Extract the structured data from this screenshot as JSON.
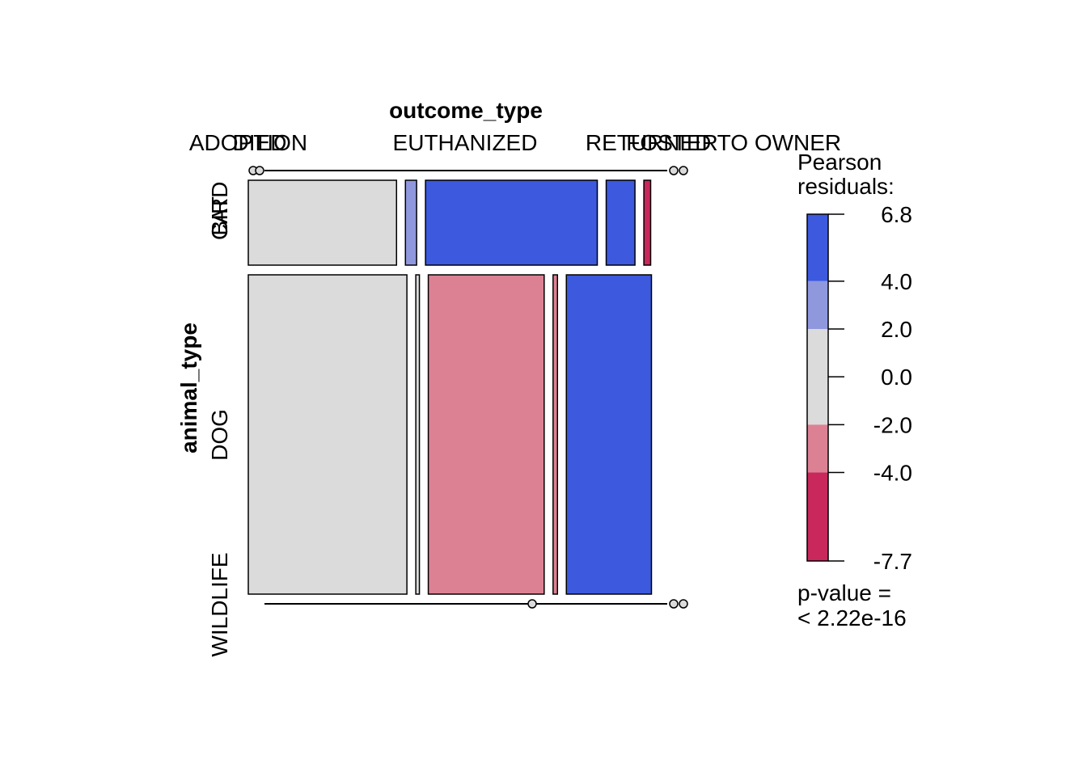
{
  "chart_data": {
    "type": "mosaic",
    "title": "",
    "column_variable": "outcome_type",
    "row_variable": "animal_type",
    "column_levels": [
      "ADOPTION",
      "DIED",
      "EUTHANIZED",
      "FOSTER",
      "RETURNED TO OWNER"
    ],
    "row_levels": [
      "BIRD",
      "CAT",
      "DOG",
      "WILDLIFE"
    ],
    "cells": [
      {
        "row": "BIRD",
        "col": "ADOPTION",
        "share": 0.0,
        "residual": 0.0
      },
      {
        "row": "BIRD",
        "col": "DIED",
        "share": 0.0,
        "residual": 0.0
      },
      {
        "row": "BIRD",
        "col": "EUTHANIZED",
        "share": 0.0,
        "residual": 0.0
      },
      {
        "row": "BIRD",
        "col": "FOSTER",
        "share": 0.0,
        "residual": 0.0
      },
      {
        "row": "BIRD",
        "col": "RETURNED TO OWNER",
        "share": 0.0,
        "residual": 0.0
      },
      {
        "row": "CAT",
        "col": "ADOPTION",
        "share": 0.371,
        "residual": 1.0
      },
      {
        "row": "CAT",
        "col": "DIED",
        "share": 0.028,
        "residual": 3.0
      },
      {
        "row": "CAT",
        "col": "EUTHANIZED",
        "share": 0.43,
        "residual": 5.5
      },
      {
        "row": "CAT",
        "col": "FOSTER",
        "share": 0.072,
        "residual": 5.0
      },
      {
        "row": "CAT",
        "col": "RETURNED TO OWNER",
        "share": 0.017,
        "residual": -6.0
      },
      {
        "row": "DOG",
        "col": "ADOPTION",
        "share": 0.397,
        "residual": -1.0
      },
      {
        "row": "DOG",
        "col": "DIED",
        "share": 0.009,
        "residual": -1.0
      },
      {
        "row": "DOG",
        "col": "EUTHANIZED",
        "share": 0.29,
        "residual": -3.0
      },
      {
        "row": "DOG",
        "col": "FOSTER",
        "share": 0.011,
        "residual": -3.0
      },
      {
        "row": "DOG",
        "col": "RETURNED TO OWNER",
        "share": 0.213,
        "residual": 5.0
      },
      {
        "row": "WILDLIFE",
        "col": "ADOPTION",
        "share": 0.0,
        "residual": 0.0
      },
      {
        "row": "WILDLIFE",
        "col": "DIED",
        "share": 0.0,
        "residual": 0.0
      },
      {
        "row": "WILDLIFE",
        "col": "EUTHANIZED",
        "share": 0.0,
        "residual": 0.0
      },
      {
        "row": "WILDLIFE",
        "col": "FOSTER",
        "share": 0.0,
        "residual": 0.0
      },
      {
        "row": "WILDLIFE",
        "col": "RETURNED TO OWNER",
        "share": 0.0,
        "residual": 0.0
      }
    ],
    "row_shares": {
      "BIRD": 0.0,
      "CAT": 0.21,
      "DOG": 0.79,
      "WILDLIFE": 0.0
    },
    "legend": {
      "title_line1": "Pearson",
      "title_line2": "residuals:",
      "ticks": [
        6.8,
        4.0,
        2.0,
        0.0,
        -2.0,
        -4.0,
        -7.7
      ],
      "tick_labels": [
        "6.8",
        "4.0",
        "2.0",
        "0.0",
        "-2.0",
        "-4.0",
        "-7.7"
      ],
      "bands": [
        {
          "from": 4.0,
          "to": 6.8,
          "color": "#3d59de"
        },
        {
          "from": 2.0,
          "to": 4.0,
          "color": "#8f98dd"
        },
        {
          "from": -2.0,
          "to": 2.0,
          "color": "#dbdbdb"
        },
        {
          "from": -4.0,
          "to": -2.0,
          "color": "#dc8193"
        },
        {
          "from": -7.7,
          "to": -4.0,
          "color": "#c8285b"
        }
      ],
      "pvalue_line1": "p-value =",
      "pvalue_line2": "< 2.22e-16"
    },
    "colors": {
      "strong_positive": "#3d59de",
      "positive": "#8f98dd",
      "neutral": "#dbdbdb",
      "negative": "#dc8193",
      "strong_negative": "#c8285b"
    }
  }
}
